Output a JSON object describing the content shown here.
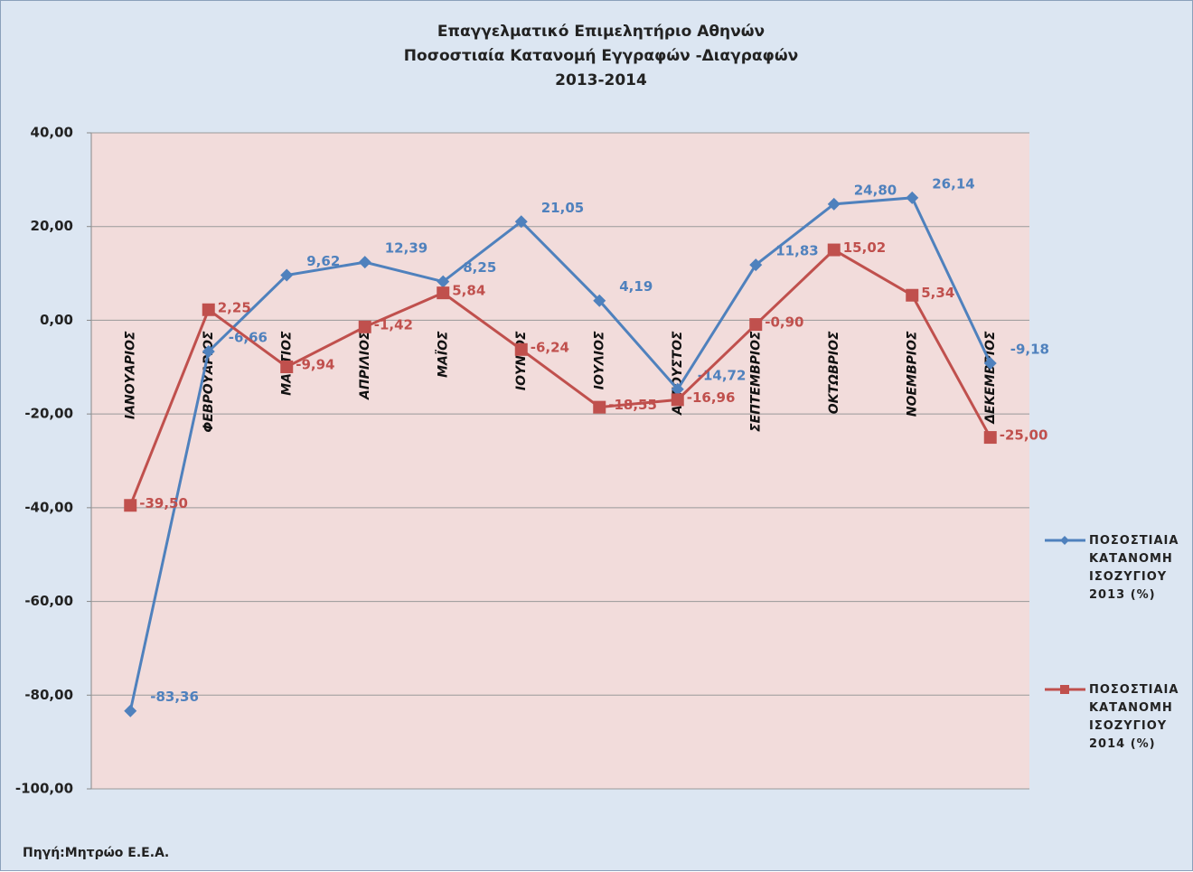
{
  "chart_data": {
    "type": "line",
    "title": [
      "Επαγγελματικό Επιμελητήριο Αθηνών",
      "Ποσοστιαία Κατανομή Εγγραφών -Διαγραφών",
      "2013-2014"
    ],
    "source": "Πηγή:Μητρώο Ε.Ε.Α.",
    "categories": [
      "ΙΑΝΟΥΑΡΙΟΣ",
      "ΦΕΒΡΟΥΑΡΙΟΣ",
      "ΜΑΡΤΙΟΣ",
      "ΑΠΡΙΛΙΟΣ",
      "ΜΑΪΟΣ",
      "ΙΟΥΝΙΟΣ",
      "ΙΟΥΛΙΟΣ",
      "ΑΥΓΟΥΣΤΟΣ",
      "ΣΕΠΤΕΜΒΡΙΟΣ",
      "ΟΚΤΩΒΡΙΟΣ",
      "ΝΟΕΜΒΡΙΟΣ",
      "ΔΕΚΕΜΒΡΙΟΣ"
    ],
    "series": [
      {
        "name": "ΠΟΣΟΣΤΙΑΙΑ ΚΑΤΑΝΟΜΗ ΙΣΟΖΥΓΙΟΥ 2013 (%)",
        "color": "#4f81bd",
        "marker": "diamond",
        "values": [
          -83.36,
          -6.66,
          9.62,
          12.39,
          8.25,
          21.05,
          4.19,
          -14.72,
          11.83,
          24.8,
          26.14,
          -9.18
        ],
        "value_labels": [
          "-83,36",
          "-6,66",
          "9,62",
          "12,39",
          "8,25",
          "21,05",
          "4,19",
          "-14,72",
          "11,83",
          "24,80",
          "26,14",
          "-9,18"
        ]
      },
      {
        "name": "ΠΟΣΟΣΤΙΑΙΑ ΚΑΤΑΝΟΜΗ ΙΣΟΖΥΓΙΟΥ 2014 (%)",
        "color": "#c0504d",
        "marker": "square",
        "values": [
          -39.5,
          2.25,
          -9.94,
          -1.42,
          5.84,
          -6.24,
          -18.55,
          -16.96,
          -0.9,
          15.02,
          5.34,
          -25.0
        ],
        "value_labels": [
          "-39,50",
          "2,25",
          "-9,94",
          "-1,42",
          "5,84",
          "-6,24",
          "-18,55",
          "-16,96",
          "-0,90",
          "15,02",
          "5,34",
          "-25,00"
        ]
      }
    ],
    "ylim": [
      -100,
      40
    ],
    "yticks": [
      {
        "value": -100,
        "label": "-100,00"
      },
      {
        "value": -80,
        "label": "-80,00"
      },
      {
        "value": -60,
        "label": "-60,00"
      },
      {
        "value": -40,
        "label": "-40,00"
      },
      {
        "value": -20,
        "label": "-20,00"
      },
      {
        "value": 0,
        "label": "0,00"
      },
      {
        "value": 20,
        "label": "20,00"
      },
      {
        "value": 40,
        "label": "40,00"
      }
    ],
    "grid": true
  }
}
